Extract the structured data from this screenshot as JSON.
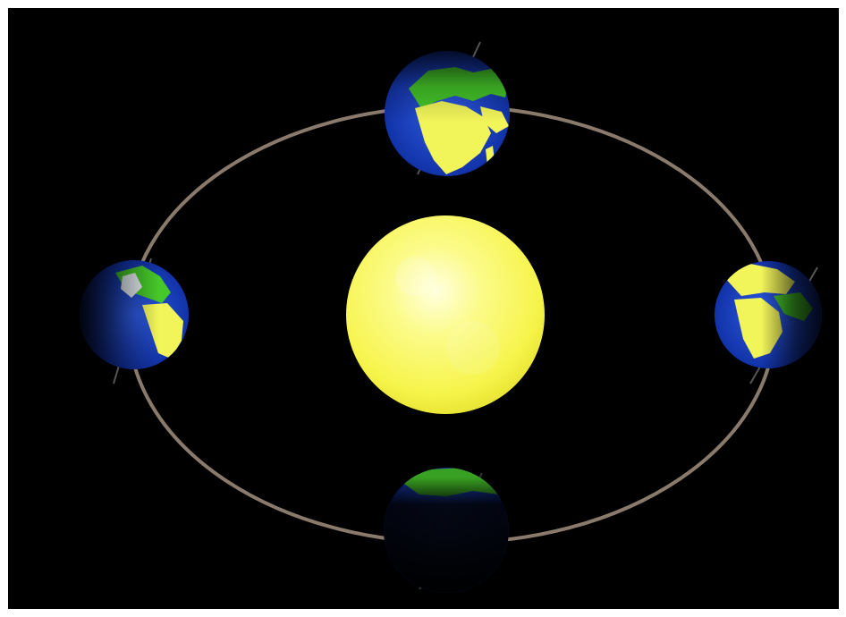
{
  "scene": {
    "background_color": "#ffffff",
    "space_color": "#000000",
    "orbit_color": "#8a7a6c",
    "sun": {
      "color": "#f8f64a",
      "highlight_color": "#ffffc8"
    },
    "earth": {
      "ocean_color": "#1a3fc4",
      "land_color": "#46c82a",
      "lit_land_color": "#f2f55a",
      "shadow_color": "#000000"
    },
    "earth_positions": [
      "top",
      "left",
      "right",
      "bottom"
    ]
  }
}
